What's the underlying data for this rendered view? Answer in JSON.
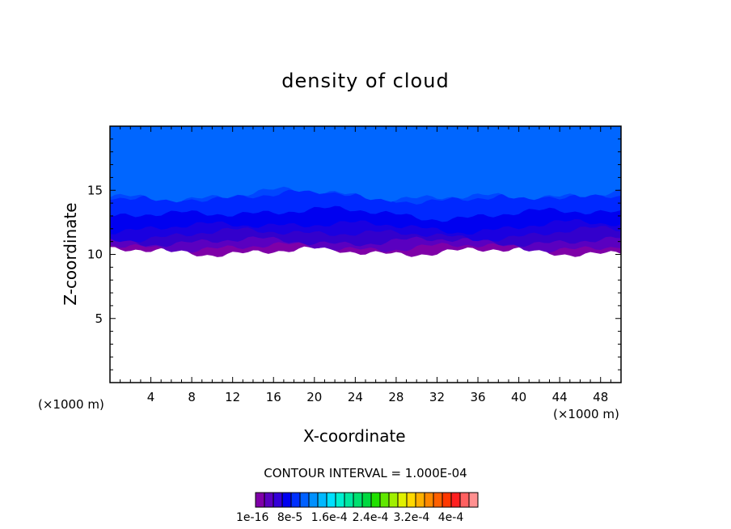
{
  "chart_data": {
    "type": "heatmap",
    "title": "density of cloud",
    "xlabel": "X-coordinate",
    "ylabel": "Z-coordinate",
    "x_unit_left": "(×1000 m)",
    "x_unit_right": "(×1000 m)",
    "xlim": [
      0,
      50
    ],
    "ylim": [
      0,
      20
    ],
    "x_ticks": [
      4,
      8,
      12,
      16,
      20,
      24,
      28,
      32,
      36,
      40,
      44,
      48
    ],
    "y_ticks": [
      5,
      10,
      15
    ],
    "contour_interval_label": "CONTOUR INTERVAL = 1.000E-04",
    "colorbar_labels": [
      "1e-16",
      "8e-5",
      "1.6e-4",
      "2.4e-4",
      "3.2e-4",
      "4e-4"
    ],
    "colorbar_colors": [
      "#7f00a8",
      "#5a00c0",
      "#3400d8",
      "#0000f0",
      "#0030ff",
      "#0060ff",
      "#0090ff",
      "#00b8ff",
      "#00e0ff",
      "#00f0d0",
      "#00e8a0",
      "#00e070",
      "#00d840",
      "#20e000",
      "#60e800",
      "#a0f000",
      "#e0f000",
      "#ffd800",
      "#ffb000",
      "#ff8800",
      "#ff6000",
      "#ff3800",
      "#ff2020",
      "#ff6060",
      "#ff9090"
    ],
    "bands": [
      {
        "level": 1,
        "color": "#7f00a8",
        "z_base": 10.2
      },
      {
        "level": 2,
        "color": "#5a00c0",
        "z_base": 10.55
      },
      {
        "level": 3,
        "color": "#3300cc",
        "z_base": 11.0
      },
      {
        "level": 4,
        "color": "#1a00e0",
        "z_base": 11.6
      },
      {
        "level": 5,
        "color": "#0000f0",
        "z_base": 12.2
      },
      {
        "level": 6,
        "color": "#0028ff",
        "z_base": 13.2
      },
      {
        "level": 7,
        "color": "#0046ff",
        "z_base": 14.5
      }
    ],
    "top_fill_color": "#0066ff"
  },
  "colors": {
    "background": "#ffffff",
    "axis": "#000000"
  }
}
